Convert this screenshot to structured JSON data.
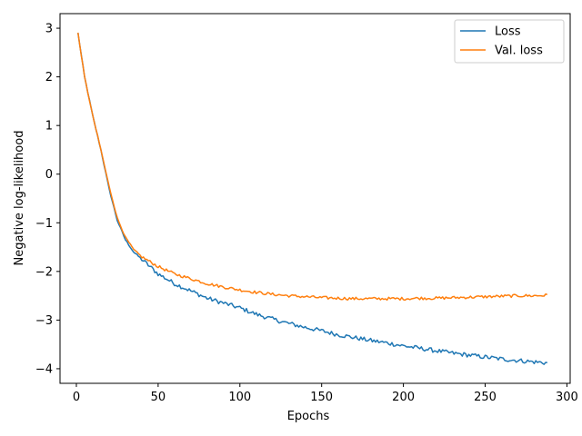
{
  "chart_data": {
    "type": "line",
    "title": "",
    "xlabel": "Epochs",
    "ylabel": "Negative log-likelihood",
    "xlim": [
      -10,
      302
    ],
    "ylim": [
      -4.3,
      3.3
    ],
    "xticks": [
      0,
      50,
      100,
      150,
      200,
      250,
      300
    ],
    "yticks": [
      3,
      2,
      1,
      0,
      -1,
      -2,
      -3,
      -4
    ],
    "xtick_labels": [
      "0",
      "50",
      "100",
      "150",
      "200",
      "250",
      "300"
    ],
    "ytick_labels": [
      "3",
      "2",
      "1",
      "0",
      "−1",
      "−2",
      "−3",
      "−4"
    ],
    "grid": false,
    "legend": "top-right",
    "series": [
      {
        "name": "Loss",
        "color": "#1f77b4",
        "x": [
          1,
          5,
          10,
          15,
          20,
          25,
          30,
          35,
          40,
          45,
          50,
          60,
          70,
          80,
          90,
          100,
          110,
          120,
          130,
          140,
          150,
          160,
          170,
          180,
          190,
          200,
          210,
          220,
          230,
          240,
          250,
          260,
          270,
          280,
          288
        ],
        "y": [
          2.9,
          2.0,
          1.2,
          0.5,
          -0.3,
          -0.95,
          -1.35,
          -1.6,
          -1.75,
          -1.9,
          -2.05,
          -2.25,
          -2.4,
          -2.55,
          -2.65,
          -2.75,
          -2.88,
          -2.98,
          -3.07,
          -3.15,
          -3.22,
          -3.3,
          -3.36,
          -3.42,
          -3.47,
          -3.53,
          -3.58,
          -3.63,
          -3.68,
          -3.72,
          -3.76,
          -3.8,
          -3.83,
          -3.86,
          -3.88
        ]
      },
      {
        "name": "Val. loss",
        "color": "#ff7f0e",
        "x": [
          1,
          5,
          10,
          15,
          20,
          25,
          30,
          35,
          40,
          45,
          50,
          60,
          70,
          80,
          90,
          100,
          110,
          120,
          130,
          140,
          150,
          160,
          170,
          180,
          190,
          200,
          210,
          220,
          230,
          240,
          250,
          260,
          270,
          280,
          288
        ],
        "y": [
          2.9,
          2.0,
          1.2,
          0.5,
          -0.25,
          -0.9,
          -1.3,
          -1.55,
          -1.7,
          -1.8,
          -1.9,
          -2.05,
          -2.15,
          -2.25,
          -2.32,
          -2.38,
          -2.43,
          -2.47,
          -2.5,
          -2.52,
          -2.54,
          -2.55,
          -2.56,
          -2.56,
          -2.56,
          -2.56,
          -2.55,
          -2.55,
          -2.54,
          -2.53,
          -2.52,
          -2.51,
          -2.5,
          -2.5,
          -2.49
        ]
      }
    ]
  }
}
